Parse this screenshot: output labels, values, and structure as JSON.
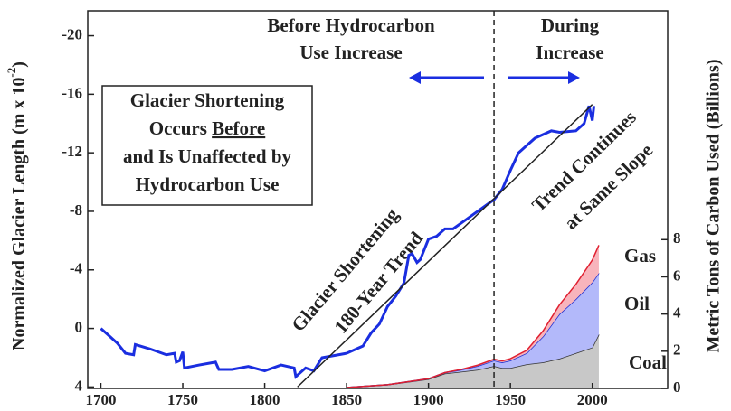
{
  "chart_data": {
    "type": "line",
    "annotations": {
      "before": [
        "Before Hydrocarbon",
        "Use Increase"
      ],
      "during": [
        "During",
        "Increase"
      ],
      "box": [
        "Glacier Shortening",
        [
          "Occurs",
          "Before"
        ],
        "and Is Unaffected by",
        "Hydrocarbon Use"
      ],
      "trend": [
        "Glacier Shortening",
        "180-Year Trend"
      ],
      "continues": [
        "Trend Continues",
        "at Same Slope"
      ]
    },
    "ylabel": [
      "Normalized Glacier Length (m x 10",
      "-2",
      ")"
    ],
    "y2label": "Metric Tons of Carbon Used (Billions)",
    "xlim": [
      1692,
      2046
    ],
    "xticks": [
      1700,
      1750,
      1800,
      1850,
      1900,
      1950,
      2000
    ],
    "ylim": [
      4.1,
      -21.7
    ],
    "yticks": [
      -20,
      -16,
      -12,
      -8,
      -4,
      0,
      4
    ],
    "y2lim": [
      0,
      20.3
    ],
    "y2ticks": [
      0,
      2,
      4,
      6,
      8
    ],
    "divider_x": 1940,
    "series": [
      {
        "color": "#1a2ee0",
        "x": [
          1700,
          1705,
          1710,
          1715,
          1720,
          1721,
          1730,
          1740,
          1745,
          1746,
          1748,
          1750,
          1751,
          1760,
          1770,
          1772,
          1780,
          1790,
          1800,
          1810,
          1818,
          1819,
          1825,
          1830,
          1835,
          1845,
          1850,
          1860,
          1865,
          1870,
          1875,
          1880,
          1885,
          1888,
          1890,
          1893,
          1895,
          1900,
          1905,
          1910,
          1915,
          1920,
          1930,
          1940,
          1945,
          1950,
          1955,
          1960,
          1965,
          1975,
          1980,
          1990,
          1995,
          1998,
          2000,
          2001
        ],
        "values": [
          0,
          0.5,
          1,
          1.7,
          1.8,
          1.1,
          1.4,
          1.8,
          1.7,
          2.3,
          2.2,
          1.6,
          2.7,
          2.5,
          2.3,
          2.8,
          2.8,
          2.6,
          2.9,
          2.5,
          2.7,
          3.3,
          2.7,
          2.9,
          2.0,
          1.8,
          1.7,
          1.2,
          0.3,
          -0.3,
          -1.5,
          -2.2,
          -3.1,
          -5.0,
          -5.1,
          -4.5,
          -4.7,
          -6.1,
          -6.3,
          -6.8,
          -6.8,
          -7.2,
          -8.0,
          -8.8,
          -9.5,
          -10.8,
          -12.0,
          -12.5,
          -13.0,
          -13.5,
          -13.4,
          -13.5,
          -14.0,
          -15.2,
          -14.2,
          -15.2
        ]
      },
      {
        "color": "#222222",
        "x": [
          1820,
          2000
        ],
        "values": [
          4,
          -15.3
        ]
      }
    ],
    "carbon": {
      "x": [
        1850,
        1875,
        1900,
        1910,
        1920,
        1930,
        1940,
        1945,
        1950,
        1960,
        1970,
        1980,
        1990,
        2000,
        2004
      ],
      "series": [
        {
          "name": "Coal",
          "color": "#c8c8c8",
          "line": "#333333",
          "axis": "y2",
          "values": [
            0.05,
            0.2,
            0.5,
            0.8,
            0.9,
            1.0,
            1.2,
            1.1,
            1.1,
            1.3,
            1.4,
            1.6,
            1.9,
            2.2,
            2.9
          ]
        },
        {
          "name": "Oil",
          "color": "#b3b9fa",
          "line": "#2030d0",
          "axis": "y2",
          "values": [
            0,
            0,
            0.02,
            0.05,
            0.1,
            0.2,
            0.3,
            0.3,
            0.4,
            0.6,
            1.4,
            2.4,
            2.9,
            3.5,
            3.3
          ]
        },
        {
          "name": "Gas",
          "color": "#f8b4bc",
          "line": "#e02030",
          "axis": "y2",
          "values": [
            0,
            0,
            0,
            0,
            0.02,
            0.05,
            0.07,
            0.08,
            0.1,
            0.15,
            0.3,
            0.5,
            0.8,
            1.2,
            1.5
          ]
        }
      ]
    }
  }
}
